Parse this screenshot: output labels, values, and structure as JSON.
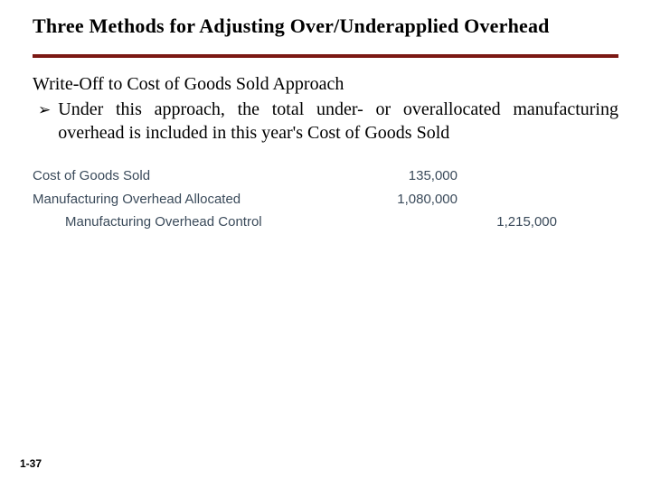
{
  "title": "Three Methods for Adjusting Over/Underapplied Overhead",
  "rule_color": "#7b1813",
  "subtitle": "Write-Off to Cost of Goods Sold Approach",
  "bullet_glyph": "➢",
  "bullet_text": "Under this approach, the total under- or overallocated manufacturing overhead is included in this year's Cost of Goods Sold",
  "journal": {
    "text_color": "#3a4a5a",
    "rows": [
      {
        "account": "Cost of Goods Sold",
        "debit": "135,000",
        "credit": "",
        "indent": false
      },
      {
        "account": "Manufacturing Overhead Allocated",
        "debit": "1,080,000",
        "credit": "",
        "indent": false
      },
      {
        "account": "Manufacturing Overhead Control",
        "debit": "",
        "credit": "1,215,000",
        "indent": true
      }
    ]
  },
  "page_number": "1-37"
}
